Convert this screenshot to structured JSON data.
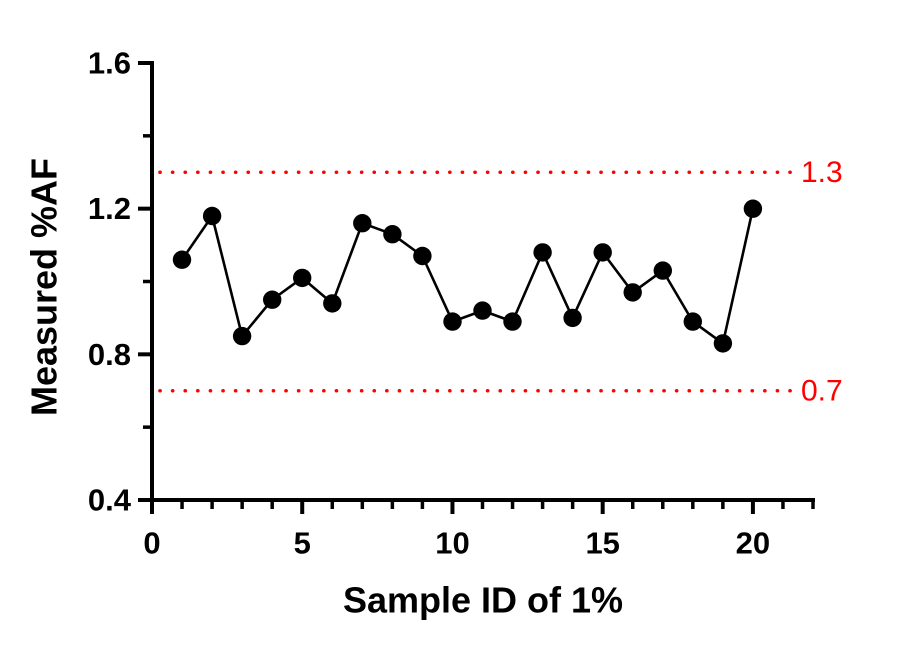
{
  "chart_data": {
    "type": "line",
    "title": "",
    "xlabel": "Sample ID of 1%",
    "ylabel": "Measured %AF",
    "x": [
      1,
      2,
      3,
      4,
      5,
      6,
      7,
      8,
      9,
      10,
      11,
      12,
      13,
      14,
      15,
      16,
      17,
      18,
      19,
      20
    ],
    "y": [
      1.06,
      1.18,
      0.85,
      0.95,
      1.01,
      0.94,
      1.16,
      1.13,
      1.07,
      0.89,
      0.92,
      0.89,
      1.08,
      0.9,
      1.08,
      0.97,
      1.03,
      0.89,
      0.83,
      1.2
    ],
    "xlim": [
      0,
      22
    ],
    "ylim": [
      0.4,
      1.6
    ],
    "x_major_ticks": [
      0,
      5,
      10,
      15,
      20
    ],
    "x_tick_labels": [
      "0",
      "5",
      "10",
      "15",
      "20"
    ],
    "x_minor_ticks": [
      1,
      2,
      3,
      4,
      6,
      7,
      8,
      9,
      11,
      12,
      13,
      14,
      16,
      17,
      18,
      19,
      21,
      22
    ],
    "y_major_ticks": [
      0.4,
      0.8,
      1.2,
      1.6
    ],
    "y_tick_labels": [
      "0.4",
      "0.8",
      "1.2",
      "1.6"
    ],
    "y_minor_ticks": [
      0.6,
      1.0,
      1.4
    ],
    "series_color": "#000000",
    "marker": "circle",
    "grid": false,
    "legend": null,
    "reference_lines": [
      {
        "value": 1.3,
        "label": "1.3"
      },
      {
        "value": 0.7,
        "label": "0.7"
      }
    ],
    "reference_color": "#FF0000",
    "axis_color": "#000000"
  }
}
